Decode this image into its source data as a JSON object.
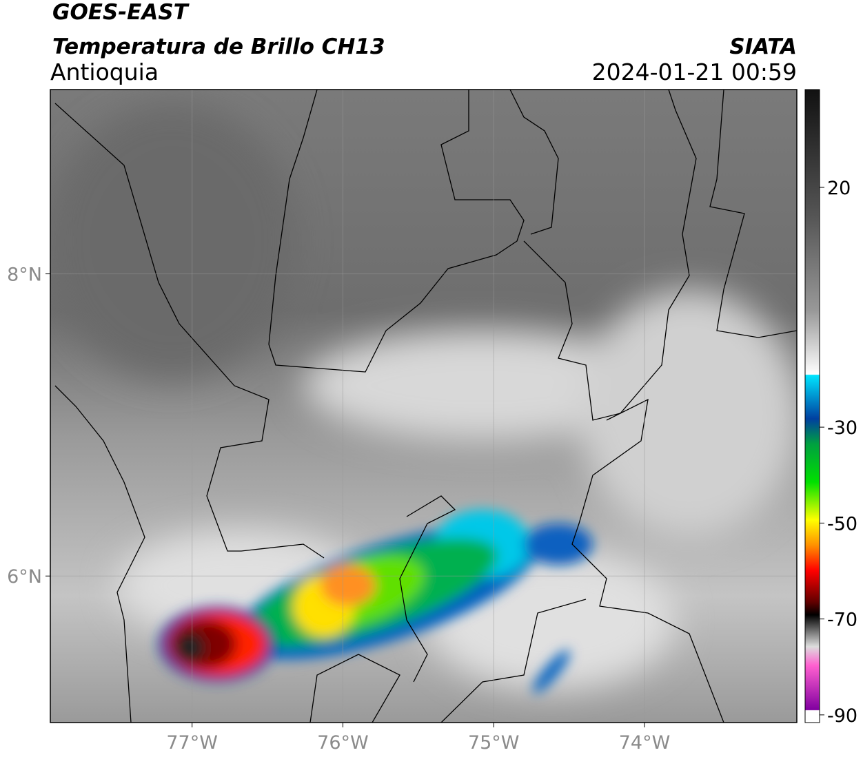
{
  "header": {
    "title": "GOES-EAST",
    "subtitle": "Temperatura de Brillo CH13",
    "region": "Antioquia",
    "source": "SIATA",
    "datetime": "2024-01-21 00:59"
  },
  "map": {
    "lon_range": [
      -77.94,
      -72.99
    ],
    "lat_range": [
      5.03,
      9.22
    ],
    "lon_ticks": [
      {
        "value": -77,
        "label": "77°W"
      },
      {
        "value": -76,
        "label": "76°W"
      },
      {
        "value": -75,
        "label": "75°W"
      },
      {
        "value": -74,
        "label": "74°W"
      }
    ],
    "lat_ticks": [
      {
        "value": 8,
        "label": "8°N"
      },
      {
        "value": 6,
        "label": "6°N"
      }
    ],
    "grid": true
  },
  "colorbar": {
    "range": [
      -91.6,
      40.4
    ],
    "ticks": [
      20,
      -30,
      -50,
      -70,
      -90
    ]
  }
}
